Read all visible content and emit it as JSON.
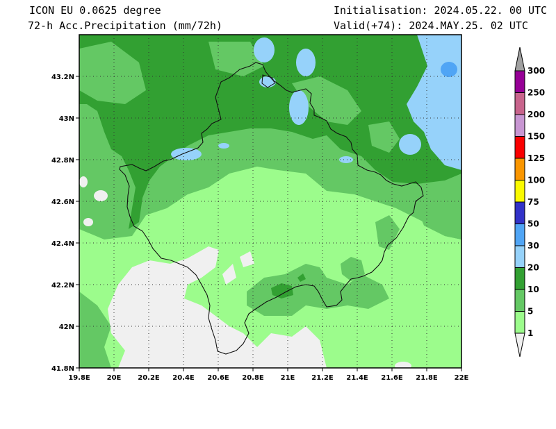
{
  "header": {
    "model": "ICON EU 0.0625 degree",
    "field": "72-h Acc.Precipitation (mm/72h)",
    "init": "Initialisation: 2024.05.22. 00 UTC",
    "valid": "Valid(+74): 2024.MAY.25. 02 UTC"
  },
  "map": {
    "lon_ticks": [
      "19.8E",
      "20E",
      "20.2E",
      "20.4E",
      "20.6E",
      "20.8E",
      "21E",
      "21.2E",
      "21.4E",
      "21.6E",
      "21.8E",
      "22E"
    ],
    "lat_ticks": [
      "43.2N",
      "43N",
      "42.8N",
      "42.6N",
      "42.4N",
      "42.2N",
      "42N",
      "41.8N"
    ],
    "extent": {
      "lon": [
        19.8,
        22.0
      ],
      "lat": [
        41.8,
        43.4
      ]
    },
    "grid": true,
    "border": "Kosovo"
  },
  "colorbar": {
    "levels": [
      "1",
      "5",
      "10",
      "20",
      "30",
      "50",
      "75",
      "100",
      "125",
      "150",
      "200",
      "250",
      "300"
    ],
    "colors": [
      "#9cfc8c",
      "#64c864",
      "#32a032",
      "#96d2fa",
      "#50a5f5",
      "#3232c8",
      "#fafa00",
      "#fa9600",
      "#fa0000",
      "#c896d2",
      "#c8648c",
      "#960096",
      "#a0a0a0"
    ],
    "below_color": "#f0f0f0"
  }
}
